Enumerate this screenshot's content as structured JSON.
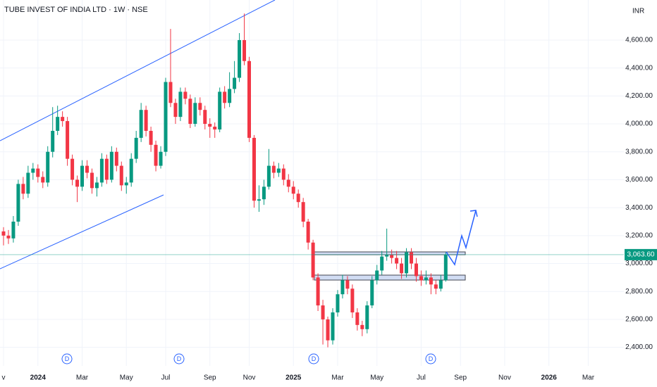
{
  "chart_data": {
    "type": "candlestick",
    "title": "TUBE INVEST OF INDIA LTD · 1W · NSE",
    "currency": "INR",
    "up_color": "#089981",
    "down_color": "#f23645",
    "ylim": [
      2267,
      4887
    ],
    "yticks": [
      {
        "value": 2400,
        "label": "2,400.00"
      },
      {
        "value": 2600,
        "label": "2,600.00"
      },
      {
        "value": 2800,
        "label": "2,800.00"
      },
      {
        "value": 3000,
        "label": "3,000.00"
      },
      {
        "value": 3200,
        "label": "3,200.00"
      },
      {
        "value": 3400,
        "label": "3,400.00"
      },
      {
        "value": 3600,
        "label": "3,600.00"
      },
      {
        "value": 3800,
        "label": "3,800.00"
      },
      {
        "value": 4000,
        "label": "4,000.00"
      },
      {
        "value": 4200,
        "label": "4,200.00"
      },
      {
        "value": 4400,
        "label": "4,400.00"
      },
      {
        "value": 4600,
        "label": "4,600.00"
      }
    ],
    "grid": true,
    "last_price": {
      "value": 3063.6,
      "label": "3,063.60"
    },
    "dividends": [
      "D",
      "D",
      "D",
      "D"
    ],
    "categories": [
      "v",
      null,
      null,
      null,
      null,
      null,
      null,
      "2024",
      null,
      null,
      null,
      null,
      null,
      null,
      null,
      null,
      "Mar",
      null,
      null,
      null,
      null,
      null,
      null,
      null,
      null,
      "May",
      null,
      null,
      null,
      null,
      null,
      null,
      null,
      "Jul",
      null,
      null,
      null,
      null,
      null,
      null,
      null,
      null,
      "Sep",
      null,
      null,
      null,
      null,
      null,
      null,
      null,
      "Nov",
      null,
      null,
      null,
      null,
      null,
      null,
      null,
      null,
      "2025",
      null,
      null,
      null,
      null,
      null,
      null,
      null,
      null,
      "Mar",
      null,
      null,
      null,
      null,
      null,
      null,
      null,
      "May",
      null,
      null,
      null,
      null,
      null,
      null,
      null,
      null,
      "Jul",
      null,
      null,
      null,
      null,
      null,
      null,
      null,
      "Sep",
      null,
      null,
      null,
      null,
      null,
      null,
      null,
      null,
      "Nov",
      null,
      null,
      null,
      null,
      null,
      null,
      null,
      null,
      "2026",
      null,
      null,
      null,
      null,
      null,
      null,
      null,
      "Mar",
      null,
      null
    ],
    "open": [
      3230,
      3200,
      3180,
      3300,
      3570,
      3500,
      3650,
      3680,
      3620,
      3580,
      3800,
      3950,
      4050,
      4020,
      3750,
      3600,
      3550,
      3700,
      3650,
      3540,
      3580,
      3750,
      3600,
      3800,
      3700,
      3560,
      3580,
      3750,
      3900,
      4100,
      3950,
      3850,
      3700,
      3800,
      4300,
      4150,
      4050,
      4230,
      4180,
      4000,
      4150,
      4100,
      4000,
      3980,
      3960,
      4230,
      4150,
      4250,
      4330,
      4600,
      4450,
      3900,
      3450,
      3460,
      3550,
      3700,
      3650,
      3680,
      3600,
      3550,
      3500,
      3440,
      3300,
      3150,
      2900,
      2700,
      2600,
      2450,
      2650,
      2780,
      2880,
      2820,
      2650,
      2560,
      2530,
      2700,
      2880,
      2950,
      3050,
      3060,
      3040,
      3000,
      2930,
      3080,
      3000,
      2910,
      2880,
      2900,
      2850,
      2820,
      2880,
      null,
      null,
      null,
      null,
      null,
      null,
      null,
      null,
      null,
      null,
      null,
      null,
      null,
      null,
      null,
      null,
      null,
      null,
      null,
      null,
      null,
      null,
      null,
      null,
      null,
      null,
      null,
      null,
      null,
      null,
      null
    ],
    "high": [
      3260,
      3240,
      3340,
      3600,
      3620,
      3700,
      3720,
      3710,
      3660,
      3840,
      4120,
      4130,
      4090,
      4050,
      3780,
      3630,
      3740,
      3740,
      3680,
      3620,
      3790,
      3780,
      3840,
      3830,
      3730,
      3620,
      3790,
      3950,
      4150,
      4130,
      3980,
      3880,
      3840,
      4330,
      4680,
      4180,
      4260,
      4260,
      4210,
      4190,
      4190,
      4130,
      4040,
      4010,
      4260,
      4270,
      4370,
      4450,
      4650,
      4790,
      4480,
      3920,
      3560,
      3600,
      3820,
      3730,
      3720,
      3710,
      3640,
      3590,
      3530,
      3470,
      3320,
      3170,
      2930,
      2740,
      2620,
      2680,
      2810,
      2920,
      2910,
      2850,
      2680,
      2590,
      2730,
      2910,
      2990,
      3090,
      3250,
      3100,
      3090,
      3040,
      3110,
      3110,
      3040,
      2950,
      2950,
      2930,
      2880,
      2920,
      3080,
      null,
      null,
      null,
      null,
      null,
      null,
      null,
      null,
      null,
      null,
      null,
      null,
      null,
      null,
      null,
      null,
      null,
      null,
      null,
      null,
      null,
      null,
      null,
      null,
      null,
      null,
      null,
      null,
      null,
      null,
      null
    ],
    "low": [
      3130,
      3140,
      3150,
      3270,
      3460,
      3470,
      3600,
      3580,
      3540,
      3550,
      3760,
      3920,
      3980,
      3700,
      3560,
      3440,
      3520,
      3610,
      3500,
      3480,
      3550,
      3570,
      3580,
      3660,
      3520,
      3500,
      3550,
      3720,
      3870,
      3910,
      3800,
      3660,
      3680,
      3770,
      4120,
      4000,
      4020,
      4140,
      3970,
      3980,
      4060,
      3960,
      3900,
      3900,
      3940,
      4110,
      4120,
      4220,
      4300,
      4420,
      3870,
      3400,
      3370,
      3420,
      3530,
      3610,
      3620,
      3560,
      3510,
      3460,
      3400,
      3260,
      3100,
      2880,
      2660,
      2420,
      2400,
      2420,
      2620,
      2750,
      2780,
      2610,
      2520,
      2480,
      2500,
      2680,
      2850,
      2920,
      3020,
      3000,
      2960,
      2890,
      2900,
      2960,
      2870,
      2840,
      2850,
      2780,
      2780,
      2800,
      2870,
      null,
      null,
      null,
      null,
      null,
      null,
      null,
      null,
      null,
      null,
      null,
      null,
      null,
      null,
      null,
      null,
      null,
      null,
      null,
      null,
      null,
      null,
      null,
      null,
      null,
      null,
      null,
      null,
      null,
      null,
      null
    ],
    "close": [
      3200,
      3180,
      3300,
      3570,
      3500,
      3650,
      3680,
      3620,
      3580,
      3800,
      3950,
      4050,
      4020,
      3750,
      3600,
      3550,
      3700,
      3650,
      3540,
      3580,
      3750,
      3600,
      3800,
      3700,
      3560,
      3580,
      3750,
      3900,
      4100,
      3950,
      3850,
      3700,
      3800,
      4300,
      4150,
      4050,
      4230,
      4180,
      4000,
      4150,
      4100,
      4000,
      3980,
      3960,
      4230,
      4150,
      4250,
      4330,
      4600,
      4450,
      3900,
      3450,
      3460,
      3550,
      3700,
      3650,
      3680,
      3600,
      3550,
      3500,
      3440,
      3300,
      3150,
      2900,
      2700,
      2600,
      2450,
      2650,
      2780,
      2880,
      2820,
      2650,
      2560,
      2530,
      2700,
      2880,
      2950,
      3050,
      3060,
      3040,
      3000,
      2930,
      3080,
      3000,
      2910,
      2880,
      2900,
      2850,
      2820,
      2880,
      3063.6,
      null,
      null,
      null,
      null,
      null,
      null,
      null,
      null,
      null,
      null,
      null,
      null,
      null,
      null,
      null,
      null,
      null,
      null,
      null,
      null,
      null,
      null,
      null,
      null,
      null,
      null,
      null,
      null,
      null,
      null,
      null
    ]
  }
}
